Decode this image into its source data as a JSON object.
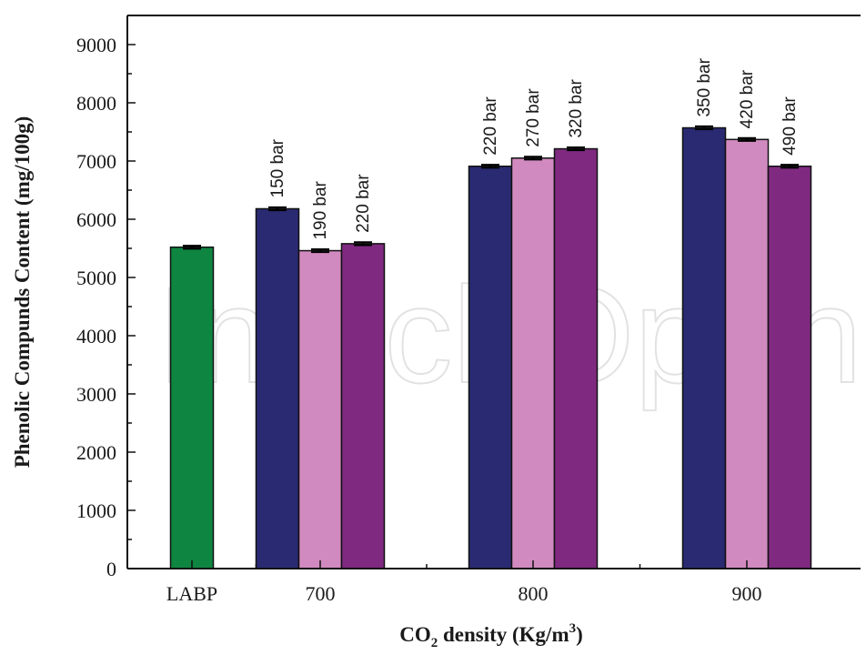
{
  "chart_data": {
    "type": "bar",
    "title": "",
    "ylabel": "Phenolic Compunds Content (mg/100g)",
    "xlabel": {
      "prefix": "CO",
      "subscript": "2",
      "middle": " density (Kg/m",
      "superscript": "3",
      "suffix": ")"
    },
    "ylim": [
      0,
      9500
    ],
    "yticks": [
      0,
      1000,
      2000,
      3000,
      4000,
      5000,
      6000,
      7000,
      8000,
      9000
    ],
    "grid": false,
    "groups": [
      {
        "label": "LABP",
        "bars": [
          {
            "value": 5520,
            "error": 25,
            "label": "",
            "color": "#0e8540"
          }
        ]
      },
      {
        "label": "700",
        "bars": [
          {
            "value": 6180,
            "error": 25,
            "label": "150 bar",
            "color": "#2a2a72"
          },
          {
            "value": 5460,
            "error": 25,
            "label": "190 bar",
            "color": "#d18abf"
          },
          {
            "value": 5580,
            "error": 25,
            "label": "220 bar",
            "color": "#7f2a80"
          }
        ]
      },
      {
        "label": "800",
        "bars": [
          {
            "value": 6910,
            "error": 25,
            "label": "220 bar",
            "color": "#2a2a72"
          },
          {
            "value": 7050,
            "error": 25,
            "label": "270 bar",
            "color": "#d18abf"
          },
          {
            "value": 7210,
            "error": 25,
            "label": "320 bar",
            "color": "#7f2a80"
          }
        ]
      },
      {
        "label": "900",
        "bars": [
          {
            "value": 7570,
            "error": 25,
            "label": "350 bar",
            "color": "#2a2a72"
          },
          {
            "value": 7370,
            "error": 25,
            "label": "420 bar",
            "color": "#d18abf"
          },
          {
            "value": 6910,
            "error": 25,
            "label": "490 bar",
            "color": "#7f2a80"
          }
        ]
      }
    ]
  }
}
